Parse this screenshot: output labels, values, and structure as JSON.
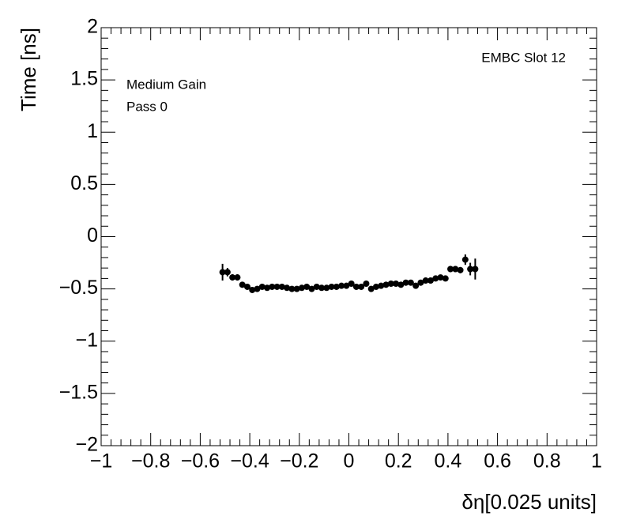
{
  "chart_data": {
    "type": "scatter",
    "x_label": "δη[0.025 units]",
    "y_label": "Time [ns]",
    "annotations": [
      "EMBC Slot 12",
      "Medium Gain",
      "Pass 0"
    ],
    "color": "#000000",
    "x": [
      -0.51,
      -0.49,
      -0.47,
      -0.45,
      -0.43,
      -0.41,
      -0.39,
      -0.37,
      -0.35,
      -0.33,
      -0.31,
      -0.29,
      -0.27,
      -0.25,
      -0.23,
      -0.21,
      -0.19,
      -0.17,
      -0.15,
      -0.13,
      -0.11,
      -0.09,
      -0.07,
      -0.05,
      -0.03,
      -0.01,
      0.01,
      0.03,
      0.05,
      0.07,
      0.09,
      0.11,
      0.13,
      0.15,
      0.17,
      0.19,
      0.21,
      0.23,
      0.25,
      0.27,
      0.29,
      0.31,
      0.33,
      0.35,
      0.37,
      0.39,
      0.41,
      0.43,
      0.45,
      0.47,
      0.49,
      0.51
    ],
    "values": [
      -0.34,
      -0.34,
      -0.39,
      -0.39,
      -0.46,
      -0.48,
      -0.51,
      -0.5,
      -0.48,
      -0.49,
      -0.48,
      -0.48,
      -0.48,
      -0.49,
      -0.5,
      -0.5,
      -0.49,
      -0.48,
      -0.5,
      -0.48,
      -0.49,
      -0.49,
      -0.48,
      -0.48,
      -0.47,
      -0.47,
      -0.45,
      -0.48,
      -0.48,
      -0.45,
      -0.5,
      -0.48,
      -0.47,
      -0.46,
      -0.45,
      -0.45,
      -0.46,
      -0.44,
      -0.44,
      -0.47,
      -0.44,
      -0.42,
      -0.42,
      -0.4,
      -0.39,
      -0.4,
      -0.31,
      -0.31,
      -0.32,
      -0.22,
      -0.31,
      -0.31
    ],
    "errors": [
      0.08,
      0.04,
      0.03,
      0.03,
      0.02,
      0.02,
      0.02,
      0.02,
      0.02,
      0.02,
      0.02,
      0.02,
      0.02,
      0.02,
      0.02,
      0.02,
      0.02,
      0.02,
      0.02,
      0.02,
      0.02,
      0.02,
      0.02,
      0.02,
      0.02,
      0.02,
      0.02,
      0.02,
      0.02,
      0.02,
      0.02,
      0.02,
      0.02,
      0.02,
      0.02,
      0.02,
      0.02,
      0.02,
      0.02,
      0.02,
      0.02,
      0.02,
      0.02,
      0.02,
      0.02,
      0.02,
      0.03,
      0.03,
      0.03,
      0.05,
      0.06,
      0.1
    ],
    "xlim": [
      -1,
      1
    ],
    "xticks": [
      {
        "value": -1,
        "label": "−1"
      },
      {
        "value": -0.8,
        "label": "−0.8"
      },
      {
        "value": -0.6,
        "label": "−0.6"
      },
      {
        "value": -0.4,
        "label": "−0.4"
      },
      {
        "value": -0.2,
        "label": "−0.2"
      },
      0,
      0.2,
      0.4,
      0.6,
      0.8,
      1
    ],
    "ylim": [
      -2,
      2
    ],
    "yticks": [
      {
        "value": -2,
        "label": "−2"
      },
      {
        "value": -1.5,
        "label": "−1.5"
      },
      {
        "value": -1,
        "label": "−1"
      },
      {
        "value": -0.5,
        "label": "−0.5"
      },
      0,
      0.5,
      1,
      1.5,
      2
    ]
  }
}
